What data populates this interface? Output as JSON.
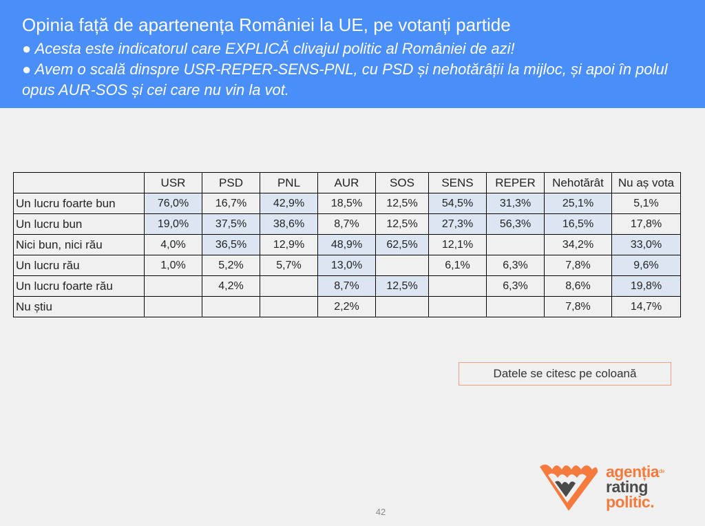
{
  "header": {
    "title": "Opinia față de apartenența României la UE, pe votanți partide",
    "bullets": [
      "● Acesta este indicatorul care EXPLICĂ clivajul politic al României de azi!",
      "● Avem o scală dinspre USR-REPER-SENS-PNL, cu PSD și nehotărâții la mijloc, și apoi în polul opus AUR-SOS și cei care nu vin la vot."
    ]
  },
  "chart_data": {
    "type": "table",
    "columns": [
      "USR",
      "PSD",
      "PNL",
      "AUR",
      "SOS",
      "SENS",
      "REPER",
      "Nehotărât",
      "Nu aș vota"
    ],
    "rows": [
      {
        "label": "Un lucru foarte bun",
        "cells": [
          "76,0%",
          "16,7%",
          "42,9%",
          "18,5%",
          "12,5%",
          "54,5%",
          "31,3%",
          "25,1%",
          "5,1%"
        ],
        "highlight": [
          true,
          false,
          true,
          false,
          false,
          true,
          true,
          true,
          false
        ]
      },
      {
        "label": "Un lucru bun",
        "cells": [
          "19,0%",
          "37,5%",
          "38,6%",
          "8,7%",
          "12,5%",
          "27,3%",
          "56,3%",
          "16,5%",
          "17,8%"
        ],
        "highlight": [
          true,
          true,
          true,
          false,
          false,
          true,
          true,
          true,
          false
        ]
      },
      {
        "label": "Nici bun, nici rău",
        "cells": [
          "4,0%",
          "36,5%",
          "12,9%",
          "48,9%",
          "62,5%",
          "12,1%",
          "",
          "34,2%",
          "33,0%"
        ],
        "highlight": [
          false,
          true,
          false,
          true,
          true,
          false,
          false,
          false,
          true
        ]
      },
      {
        "label": "Un lucru rău",
        "cells": [
          "1,0%",
          "5,2%",
          "5,7%",
          "13,0%",
          "",
          "6,1%",
          "6,3%",
          "7,8%",
          "9,6%"
        ],
        "highlight": [
          false,
          false,
          false,
          true,
          false,
          false,
          false,
          false,
          true
        ]
      },
      {
        "label": "Un lucru foarte rău",
        "cells": [
          "",
          "4,2%",
          "",
          "8,7%",
          "12,5%",
          "",
          "6,3%",
          "8,6%",
          "19,8%"
        ],
        "highlight": [
          false,
          false,
          false,
          true,
          true,
          false,
          false,
          false,
          true
        ]
      },
      {
        "label": "Nu știu",
        "cells": [
          "",
          "",
          "",
          "2,2%",
          "",
          "",
          "",
          "7,8%",
          "14,7%"
        ],
        "highlight": [
          false,
          false,
          false,
          false,
          false,
          false,
          false,
          false,
          false
        ]
      }
    ],
    "highlight_color": "#dce6f2"
  },
  "note": "Datele se citesc pe coloană",
  "page_number": "42",
  "logo": {
    "line1": "agenția",
    "line1_small": "de",
    "line2": "rating",
    "line3": "politic.",
    "colors": {
      "orange": "#f47a3d",
      "gray": "#4a4a4a"
    }
  },
  "colors": {
    "header_bg": "#4a8ef7",
    "background": "#f0f0f0"
  }
}
